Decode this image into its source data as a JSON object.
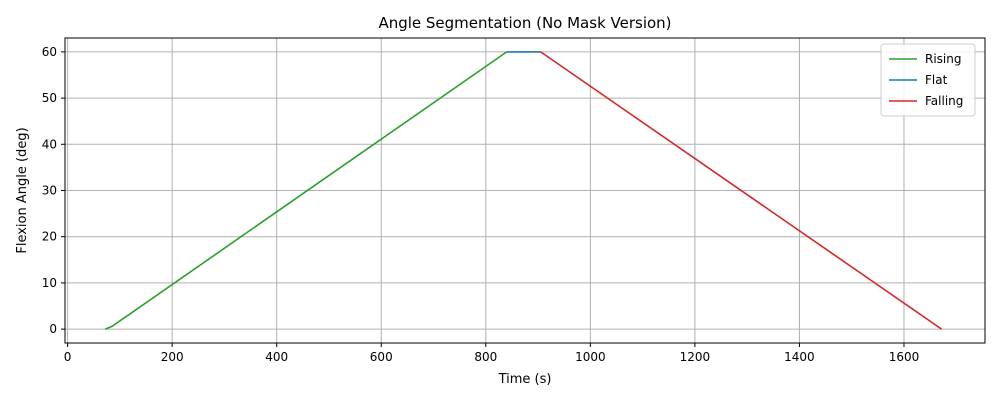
{
  "chart_data": {
    "type": "line",
    "title": "Angle Segmentation (No Mask Version)",
    "xlabel": "Time (s)",
    "ylabel": "Flexion Angle (deg)",
    "xlim": [
      -5,
      1755
    ],
    "ylim": [
      -3,
      63
    ],
    "xticks": [
      0,
      200,
      400,
      600,
      800,
      1000,
      1200,
      1400,
      1600
    ],
    "yticks": [
      0,
      10,
      20,
      30,
      40,
      50,
      60
    ],
    "grid": true,
    "legend_position": "top-right",
    "series": [
      {
        "name": "Rising",
        "color": "#2ca02c",
        "points": [
          [
            72,
            0
          ],
          [
            85,
            0.6
          ],
          [
            840,
            60
          ]
        ]
      },
      {
        "name": "Flat",
        "color": "#1f77b4",
        "points": [
          [
            840,
            60
          ],
          [
            905,
            60
          ]
        ]
      },
      {
        "name": "Falling",
        "color": "#d62728",
        "points": [
          [
            905,
            60
          ],
          [
            1672,
            0
          ]
        ]
      }
    ]
  }
}
